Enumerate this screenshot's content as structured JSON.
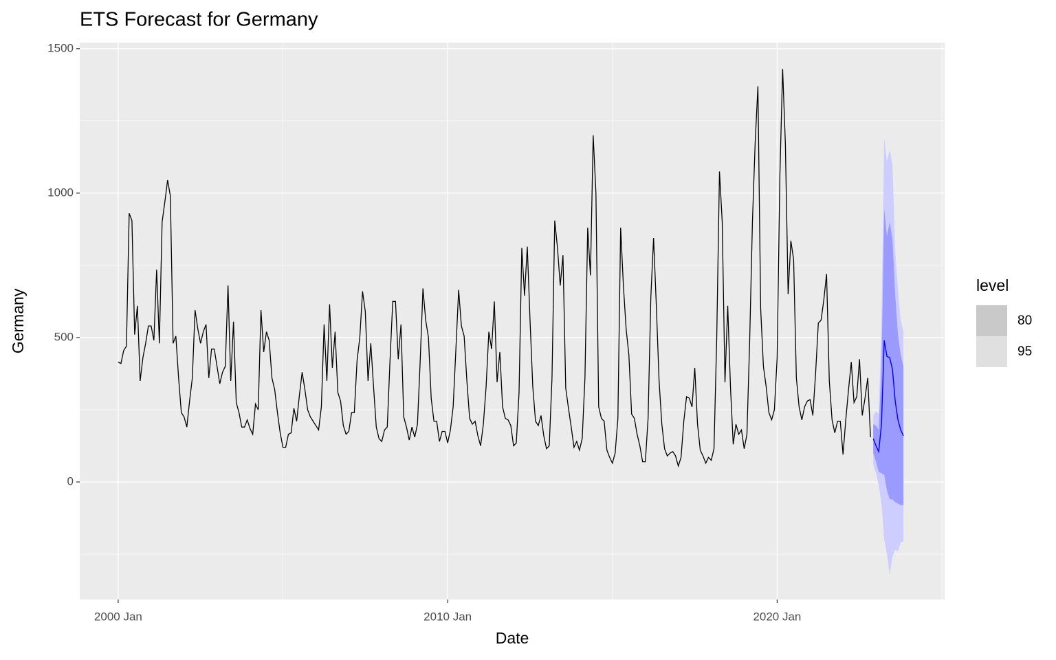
{
  "chart_data": {
    "type": "line",
    "title": "ETS Forecast for Germany",
    "x_label": "Date",
    "y_label": "Germany",
    "x": [
      "2000 Jan",
      "2000 Feb",
      "2000 Mar",
      "2000 Apr",
      "2000 May",
      "2000 Jun",
      "2000 Jul",
      "2000 Aug",
      "2000 Sep",
      "2000 Oct",
      "2000 Nov",
      "2000 Dec",
      "2001 Jan",
      "2001 Feb",
      "2001 Mar",
      "2001 Apr",
      "2001 May",
      "2001 Jun",
      "2001 Jul",
      "2001 Aug",
      "2001 Sep",
      "2001 Oct",
      "2001 Nov",
      "2001 Dec",
      "2002 Jan",
      "2002 Feb",
      "2002 Mar",
      "2002 Apr",
      "2002 May",
      "2002 Jun",
      "2002 Jul",
      "2002 Aug",
      "2002 Sep",
      "2002 Oct",
      "2002 Nov",
      "2002 Dec",
      "2003 Jan",
      "2003 Feb",
      "2003 Mar",
      "2003 Apr",
      "2003 May",
      "2003 Jun",
      "2003 Jul",
      "2003 Aug",
      "2003 Sep",
      "2003 Oct",
      "2003 Nov",
      "2003 Dec",
      "2004 Jan",
      "2004 Feb",
      "2004 Mar",
      "2004 Apr",
      "2004 May",
      "2004 Jun",
      "2004 Jul",
      "2004 Aug",
      "2004 Sep",
      "2004 Oct",
      "2004 Nov",
      "2004 Dec",
      "2005 Jan",
      "2005 Feb",
      "2005 Mar",
      "2005 Apr",
      "2005 May",
      "2005 Jun",
      "2005 Jul",
      "2005 Aug",
      "2005 Sep",
      "2005 Oct",
      "2005 Nov",
      "2005 Dec",
      "2006 Jan",
      "2006 Feb",
      "2006 Mar",
      "2006 Apr",
      "2006 May",
      "2006 Jun",
      "2006 Jul",
      "2006 Aug",
      "2006 Sep",
      "2006 Oct",
      "2006 Nov",
      "2006 Dec",
      "2007 Jan",
      "2007 Feb",
      "2007 Mar",
      "2007 Apr",
      "2007 May",
      "2007 Jun",
      "2007 Jul",
      "2007 Aug",
      "2007 Sep",
      "2007 Oct",
      "2007 Nov",
      "2007 Dec",
      "2008 Jan",
      "2008 Feb",
      "2008 Mar",
      "2008 Apr",
      "2008 May",
      "2008 Jun",
      "2008 Jul",
      "2008 Aug",
      "2008 Sep",
      "2008 Oct",
      "2008 Nov",
      "2008 Dec",
      "2009 Jan",
      "2009 Feb",
      "2009 Mar",
      "2009 Apr",
      "2009 May",
      "2009 Jun",
      "2009 Jul",
      "2009 Aug",
      "2009 Sep",
      "2009 Oct",
      "2009 Nov",
      "2009 Dec",
      "2010 Jan",
      "2010 Feb",
      "2010 Mar",
      "2010 Apr",
      "2010 May",
      "2010 Jun",
      "2010 Jul",
      "2010 Aug",
      "2010 Sep",
      "2010 Oct",
      "2010 Nov",
      "2010 Dec",
      "2011 Jan",
      "2011 Feb",
      "2011 Mar",
      "2011 Apr",
      "2011 May",
      "2011 Jun",
      "2011 Jul",
      "2011 Aug",
      "2011 Sep",
      "2011 Oct",
      "2011 Nov",
      "2011 Dec",
      "2012 Jan",
      "2012 Feb",
      "2012 Mar",
      "2012 Apr",
      "2012 May",
      "2012 Jun",
      "2012 Jul",
      "2012 Aug",
      "2012 Sep",
      "2012 Oct",
      "2012 Nov",
      "2012 Dec",
      "2013 Jan",
      "2013 Feb",
      "2013 Mar",
      "2013 Apr",
      "2013 May",
      "2013 Jun",
      "2013 Jul",
      "2013 Aug",
      "2013 Sep",
      "2013 Oct",
      "2013 Nov",
      "2013 Dec",
      "2014 Jan",
      "2014 Feb",
      "2014 Mar",
      "2014 Apr",
      "2014 May",
      "2014 Jun",
      "2014 Jul",
      "2014 Aug",
      "2014 Sep",
      "2014 Oct",
      "2014 Nov",
      "2014 Dec",
      "2015 Jan",
      "2015 Feb",
      "2015 Mar",
      "2015 Apr",
      "2015 May",
      "2015 Jun",
      "2015 Jul",
      "2015 Aug",
      "2015 Sep",
      "2015 Oct",
      "2015 Nov",
      "2015 Dec",
      "2016 Jan",
      "2016 Feb",
      "2016 Mar",
      "2016 Apr",
      "2016 May",
      "2016 Jun",
      "2016 Jul",
      "2016 Aug",
      "2016 Sep",
      "2016 Oct",
      "2016 Nov",
      "2016 Dec",
      "2017 Jan",
      "2017 Feb",
      "2017 Mar",
      "2017 Apr",
      "2017 May",
      "2017 Jun",
      "2017 Jul",
      "2017 Aug",
      "2017 Sep",
      "2017 Oct",
      "2017 Nov",
      "2017 Dec",
      "2018 Jan",
      "2018 Feb",
      "2018 Mar",
      "2018 Apr",
      "2018 May",
      "2018 Jun",
      "2018 Jul",
      "2018 Aug",
      "2018 Sep",
      "2018 Oct",
      "2018 Nov",
      "2018 Dec",
      "2019 Jan",
      "2019 Feb",
      "2019 Mar",
      "2019 Apr",
      "2019 May",
      "2019 Jun",
      "2019 Jul",
      "2019 Aug",
      "2019 Sep",
      "2019 Oct",
      "2019 Nov",
      "2019 Dec",
      "2020 Jan",
      "2020 Feb",
      "2020 Mar",
      "2020 Apr",
      "2020 May",
      "2020 Jun",
      "2020 Jul",
      "2020 Aug",
      "2020 Sep",
      "2020 Oct",
      "2020 Nov",
      "2020 Dec",
      "2021 Jan",
      "2021 Feb",
      "2021 Mar",
      "2021 Apr",
      "2021 May",
      "2021 Jun",
      "2021 Jul",
      "2021 Aug",
      "2021 Sep",
      "2021 Oct",
      "2021 Nov",
      "2021 Dec",
      "2022 Jan",
      "2022 Feb",
      "2022 Mar",
      "2022 Apr",
      "2022 May",
      "2022 Jun",
      "2022 Jul",
      "2022 Aug",
      "2022 Sep",
      "2022 Oct",
      "2022 Nov"
    ],
    "values": [
      415,
      410,
      455,
      470,
      930,
      905,
      510,
      610,
      350,
      430,
      480,
      540,
      540,
      490,
      735,
      480,
      900,
      970,
      1045,
      990,
      480,
      505,
      360,
      240,
      225,
      190,
      280,
      360,
      595,
      530,
      480,
      520,
      545,
      360,
      460,
      460,
      400,
      340,
      380,
      400,
      680,
      350,
      555,
      275,
      240,
      190,
      190,
      215,
      185,
      165,
      270,
      250,
      595,
      450,
      520,
      490,
      360,
      320,
      240,
      170,
      120,
      120,
      165,
      170,
      255,
      210,
      300,
      380,
      320,
      250,
      225,
      210,
      195,
      180,
      260,
      545,
      350,
      615,
      395,
      520,
      310,
      280,
      195,
      165,
      175,
      240,
      240,
      420,
      500,
      660,
      590,
      350,
      480,
      330,
      190,
      150,
      140,
      180,
      190,
      420,
      625,
      625,
      425,
      545,
      225,
      190,
      145,
      190,
      155,
      200,
      420,
      670,
      560,
      500,
      290,
      210,
      210,
      140,
      175,
      175,
      135,
      180,
      260,
      460,
      665,
      540,
      505,
      350,
      220,
      200,
      210,
      160,
      125,
      200,
      330,
      520,
      460,
      625,
      345,
      450,
      260,
      220,
      215,
      195,
      125,
      135,
      310,
      810,
      645,
      815,
      560,
      330,
      210,
      195,
      230,
      160,
      115,
      125,
      360,
      905,
      810,
      680,
      785,
      325,
      255,
      190,
      120,
      140,
      110,
      150,
      360,
      880,
      715,
      1200,
      1000,
      260,
      220,
      210,
      110,
      85,
      65,
      100,
      220,
      880,
      680,
      530,
      440,
      235,
      220,
      165,
      125,
      70,
      70,
      220,
      640,
      845,
      610,
      350,
      200,
      115,
      90,
      100,
      105,
      90,
      55,
      85,
      210,
      295,
      290,
      260,
      395,
      200,
      110,
      90,
      65,
      85,
      75,
      115,
      500,
      1075,
      900,
      345,
      610,
      330,
      130,
      200,
      165,
      180,
      115,
      165,
      490,
      900,
      1175,
      1370,
      600,
      400,
      330,
      240,
      215,
      250,
      430,
      1060,
      1430,
      1170,
      650,
      835,
      770,
      360,
      260,
      215,
      260,
      280,
      285,
      230,
      375,
      550,
      560,
      630,
      720,
      350,
      215,
      170,
      210,
      210,
      95,
      215,
      320,
      415,
      275,
      295,
      425,
      230,
      290,
      360,
      155
    ],
    "color": "#000000",
    "forecast": {
      "x": [
        "2022 Dec",
        "2023 Jan",
        "2023 Feb",
        "2023 Mar",
        "2023 Apr",
        "2023 May",
        "2023 Jun",
        "2023 Jul",
        "2023 Aug",
        "2023 Sep",
        "2023 Oct",
        "2023 Nov"
      ],
      "mean": [
        150,
        125,
        105,
        200,
        490,
        435,
        430,
        390,
        280,
        215,
        180,
        160
      ],
      "color": "#0000ff",
      "intervals": [
        {
          "level": 80,
          "lower": [
            100,
            70,
            35,
            30,
            25,
            -30,
            -60,
            -60,
            -70,
            -75,
            -80,
            -80
          ],
          "upper": [
            200,
            195,
            180,
            400,
            945,
            850,
            900,
            840,
            650,
            510,
            440,
            400
          ],
          "color": "#9a9aff",
          "legend_color": "#c9c9c9"
        },
        {
          "level": 95,
          "lower": [
            60,
            30,
            -10,
            -75,
            -200,
            -250,
            -320,
            -260,
            -235,
            -240,
            -210,
            -205
          ],
          "upper": [
            230,
            245,
            235,
            560,
            1190,
            1110,
            1150,
            1100,
            800,
            670,
            560,
            520
          ],
          "color": "#cdcdff",
          "legend_color": "#e0e0e0"
        }
      ]
    },
    "legend_title": "level",
    "xlim": [
      "1998 Nov",
      "2025 Feb"
    ],
    "xticks": [
      "2000 Jan",
      "2010 Jan",
      "2020 Jan"
    ],
    "xminor": [
      "2005 Jan",
      "2015 Jan",
      "2025 Jan"
    ],
    "ylim": [
      -407,
      1521
    ],
    "yticks": [
      0,
      500,
      1000,
      1500
    ],
    "yminor": [
      -250,
      250,
      750,
      1250
    ],
    "grid": true
  }
}
